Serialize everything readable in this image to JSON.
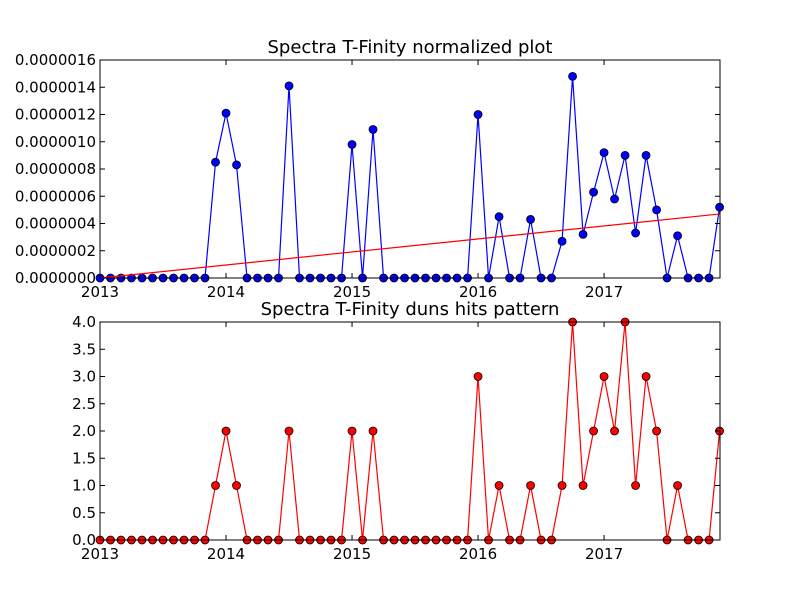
{
  "chart_data": [
    {
      "type": "line",
      "title": "Spectra T-Finity normalized plot",
      "xlabel": "",
      "ylabel": "",
      "x_ticks": [
        "2013",
        "2014",
        "2015",
        "2016",
        "2017"
      ],
      "x_tick_positions": [
        2013,
        2014,
        2015,
        2016,
        2017
      ],
      "xlim": [
        2013.0,
        2017.92
      ],
      "ylim": [
        0,
        1.6e-06
      ],
      "y_ticks": [
        "0.0000000",
        "0.0000002",
        "0.0000004",
        "0.0000006",
        "0.0000008",
        "0.0000010",
        "0.0000012",
        "0.0000014",
        "0.0000016"
      ],
      "y_tick_values": [
        0,
        2e-07,
        4e-07,
        6e-07,
        8e-07,
        1e-06,
        1.2e-06,
        1.4e-06,
        1.6e-06
      ],
      "grid": false,
      "series": [
        {
          "kind": "line-marker",
          "color": "#0000ff",
          "marker_color": "#0000ff",
          "x": [
            2013.0,
            2013.0833,
            2013.1667,
            2013.25,
            2013.3333,
            2013.4167,
            2013.5,
            2013.5833,
            2013.6667,
            2013.75,
            2013.8333,
            2013.9167,
            2014.0,
            2014.0833,
            2014.1667,
            2014.25,
            2014.3333,
            2014.4167,
            2014.5,
            2014.5833,
            2014.6667,
            2014.75,
            2014.8333,
            2014.9167,
            2015.0,
            2015.0833,
            2015.1667,
            2015.25,
            2015.3333,
            2015.4167,
            2015.5,
            2015.5833,
            2015.6667,
            2015.75,
            2015.8333,
            2015.9167,
            2016.0,
            2016.0833,
            2016.1667,
            2016.25,
            2016.3333,
            2016.4167,
            2016.5,
            2016.5833,
            2016.6667,
            2016.75,
            2016.8333,
            2016.9167,
            2017.0,
            2017.0833,
            2017.1667,
            2017.25,
            2017.3333,
            2017.4167,
            2017.5,
            2017.5833,
            2017.6667,
            2017.75,
            2017.8333,
            2017.9167
          ],
          "y": [
            0,
            0,
            0,
            0,
            0,
            0,
            0,
            0,
            0,
            0,
            0,
            8.5e-07,
            1.21e-06,
            8.3e-07,
            0,
            0,
            0,
            0,
            1.41e-06,
            0,
            0,
            0,
            0,
            0,
            9.8e-07,
            0,
            1.09e-06,
            0,
            0,
            0,
            0,
            0,
            0,
            0,
            0,
            0,
            1.2e-06,
            0,
            4.5e-07,
            0,
            0,
            4.3e-07,
            0,
            0,
            2.7e-07,
            1.48e-06,
            3.2e-07,
            6.3e-07,
            9.2e-07,
            5.8e-07,
            9e-07,
            3.3e-07,
            9e-07,
            5e-07,
            0,
            3.1e-07,
            0,
            0,
            0,
            5.2e-07
          ]
        },
        {
          "kind": "line",
          "color": "#ff0000",
          "x": [
            2013.0,
            2017.92
          ],
          "y": [
            0,
            4.7e-07
          ]
        }
      ]
    },
    {
      "type": "line",
      "title": "Spectra T-Finity duns hits pattern",
      "xlabel": "",
      "ylabel": "",
      "x_ticks": [
        "2013",
        "2014",
        "2015",
        "2016",
        "2017"
      ],
      "x_tick_positions": [
        2013,
        2014,
        2015,
        2016,
        2017
      ],
      "xlim": [
        2013.0,
        2017.92
      ],
      "ylim": [
        0,
        4.0
      ],
      "y_ticks": [
        "0.0",
        "0.5",
        "1.0",
        "1.5",
        "2.0",
        "2.5",
        "3.0",
        "3.5",
        "4.0"
      ],
      "y_tick_values": [
        0,
        0.5,
        1.0,
        1.5,
        2.0,
        2.5,
        3.0,
        3.5,
        4.0
      ],
      "grid": false,
      "series": [
        {
          "kind": "line-marker",
          "color": "#ff0000",
          "marker_color": "#ff0000",
          "x": [
            2013.0,
            2013.0833,
            2013.1667,
            2013.25,
            2013.3333,
            2013.4167,
            2013.5,
            2013.5833,
            2013.6667,
            2013.75,
            2013.8333,
            2013.9167,
            2014.0,
            2014.0833,
            2014.1667,
            2014.25,
            2014.3333,
            2014.4167,
            2014.5,
            2014.5833,
            2014.6667,
            2014.75,
            2014.8333,
            2014.9167,
            2015.0,
            2015.0833,
            2015.1667,
            2015.25,
            2015.3333,
            2015.4167,
            2015.5,
            2015.5833,
            2015.6667,
            2015.75,
            2015.8333,
            2015.9167,
            2016.0,
            2016.0833,
            2016.1667,
            2016.25,
            2016.3333,
            2016.4167,
            2016.5,
            2016.5833,
            2016.6667,
            2016.75,
            2016.8333,
            2016.9167,
            2017.0,
            2017.0833,
            2017.1667,
            2017.25,
            2017.3333,
            2017.4167,
            2017.5,
            2017.5833,
            2017.6667,
            2017.75,
            2017.8333,
            2017.9167
          ],
          "y": [
            0,
            0,
            0,
            0,
            0,
            0,
            0,
            0,
            0,
            0,
            0,
            1,
            2,
            1,
            0,
            0,
            0,
            0,
            2,
            0,
            0,
            0,
            0,
            0,
            2,
            0,
            2,
            0,
            0,
            0,
            0,
            0,
            0,
            0,
            0,
            0,
            3,
            0,
            1,
            0,
            0,
            1,
            0,
            0,
            1,
            4,
            1,
            2,
            3,
            2,
            4,
            1,
            3,
            2,
            0,
            1,
            0,
            0,
            0,
            2
          ]
        }
      ]
    }
  ]
}
